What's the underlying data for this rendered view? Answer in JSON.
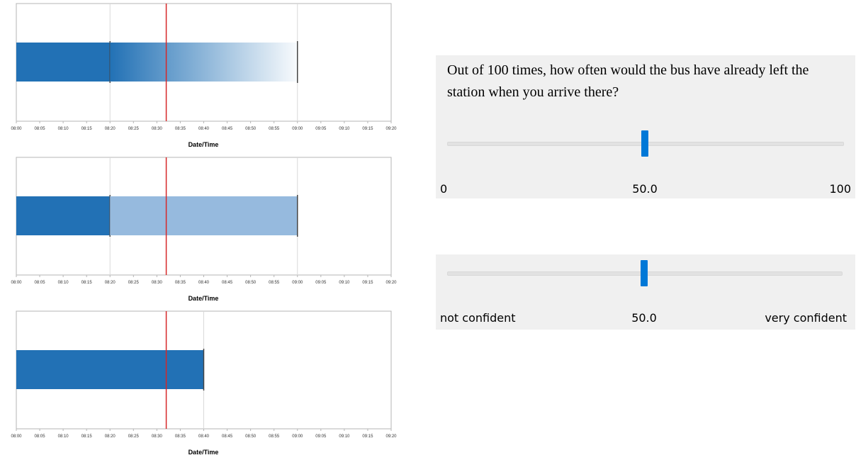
{
  "chart_data": [
    {
      "type": "bar",
      "xlabel": "Date/Time",
      "x_ticks": [
        "08:00",
        "08:05",
        "08:10",
        "08:15",
        "08:20",
        "08:25",
        "08:30",
        "08:35",
        "08:40",
        "08:45",
        "08:50",
        "08:55",
        "09:00",
        "09:05",
        "09:10",
        "09:15",
        "09:20"
      ],
      "xlim": [
        "08:00",
        "09:20"
      ],
      "current_time_marker": "08:32",
      "segments": [
        {
          "start": "08:00",
          "end": "08:20",
          "style": "solid",
          "color": "#2271b5"
        },
        {
          "start": "08:20",
          "end": "09:00",
          "style": "gradient-fade",
          "color": "#2271b5"
        }
      ],
      "vertical_gridlines": [
        "08:20",
        "09:00"
      ]
    },
    {
      "type": "bar",
      "xlabel": "Date/Time",
      "x_ticks": [
        "08:00",
        "08:05",
        "08:10",
        "08:15",
        "08:20",
        "08:25",
        "08:30",
        "08:35",
        "08:40",
        "08:45",
        "08:50",
        "08:55",
        "09:00",
        "09:05",
        "09:10",
        "09:15",
        "09:20"
      ],
      "xlim": [
        "08:00",
        "09:20"
      ],
      "current_time_marker": "08:32",
      "segments": [
        {
          "start": "08:00",
          "end": "08:20",
          "style": "solid",
          "color": "#2271b5"
        },
        {
          "start": "08:20",
          "end": "09:00",
          "style": "solid",
          "color": "#96bade"
        }
      ],
      "vertical_gridlines": [
        "08:20",
        "09:00"
      ]
    },
    {
      "type": "bar",
      "xlabel": "Date/Time",
      "x_ticks": [
        "08:00",
        "08:05",
        "08:10",
        "08:15",
        "08:20",
        "08:25",
        "08:30",
        "08:35",
        "08:40",
        "08:45",
        "08:50",
        "08:55",
        "09:00",
        "09:05",
        "09:10",
        "09:15",
        "09:20"
      ],
      "xlim": [
        "08:00",
        "09:20"
      ],
      "current_time_marker": "08:32",
      "segments": [
        {
          "start": "08:00",
          "end": "08:40",
          "style": "solid",
          "color": "#2271b5"
        }
      ],
      "vertical_gridlines": [
        "08:40"
      ]
    }
  ],
  "probability_question": {
    "text": "Out of 100 times, how often would the bus have already left the station when you arrive there?",
    "min_label": "0",
    "value_label": "50.0",
    "max_label": "100",
    "value_fraction": 0.5
  },
  "confidence_slider": {
    "min_label": "not confident",
    "value_label": "50.0",
    "max_label": "very confident",
    "value_fraction": 0.5
  },
  "colors": {
    "bar_dark": "#2271b5",
    "bar_light": "#96bade",
    "marker": "#d62728",
    "slider_accent": "#0078d7",
    "panel_bg": "#f0f0f0"
  }
}
